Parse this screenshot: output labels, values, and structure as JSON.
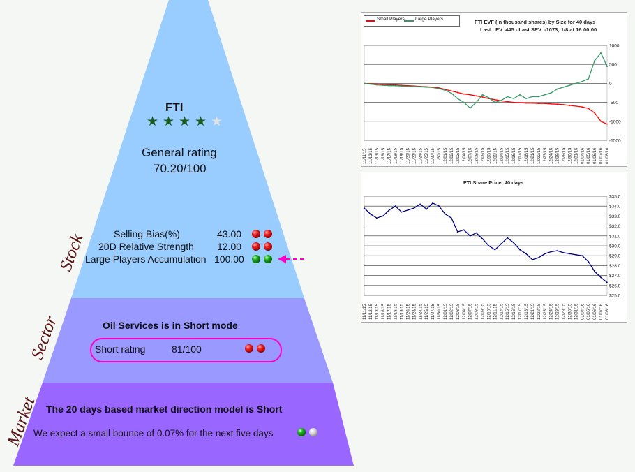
{
  "stock": {
    "ticker": "FTI",
    "stars": 4,
    "stars_max": 5,
    "rating_label": "General rating",
    "rating_value": "70.20/100",
    "side_label": "Stock",
    "metrics": [
      {
        "label": "Selling Bias(%)",
        "value": "43.00",
        "balls": [
          "red",
          "red"
        ]
      },
      {
        "label": "20D Relative Strength",
        "value": "12.00",
        "balls": [
          "red",
          "red"
        ]
      },
      {
        "label": "Large Players Accumulation",
        "value": "100.00",
        "balls": [
          "green",
          "green"
        ]
      }
    ]
  },
  "sector": {
    "side_label": "Sector",
    "headline": "Oil Services is in Short mode",
    "short_label": "Short rating",
    "short_value": "81/100",
    "balls": [
      "red",
      "red"
    ]
  },
  "market": {
    "side_label": "Market",
    "headline": "The 20 days based market direction model is Short",
    "note": "We expect a small bounce of 0.07% for the next five days",
    "balls": [
      "green",
      "white"
    ]
  },
  "colors": {
    "stock": "#99ccff",
    "sector": "#9999ff",
    "market": "#9966ff",
    "small_players": "#ff0000",
    "large_players": "#339966",
    "price": "#000080",
    "highlight": "#ff00cc"
  },
  "chart_data": [
    {
      "type": "line",
      "title": "FTI EVF (in thousand shares) by Size for 40 days",
      "subtitle": "Last LEV: 445 - Last SEV: -1073; 1/8 at 16:00:00",
      "legend_position": "top-left",
      "grid": true,
      "ylim": [
        -1500,
        1000
      ],
      "yticks": [
        1000,
        500,
        0,
        -500,
        -1000,
        -1500
      ],
      "x": [
        "11/11/15",
        "11/12/15",
        "11/13/15",
        "11/16/15",
        "11/17/15",
        "11/18/15",
        "11/19/15",
        "11/20/15",
        "11/23/15",
        "11/24/15",
        "11/25/15",
        "11/27/15",
        "11/30/15",
        "12/01/15",
        "12/02/15",
        "12/03/15",
        "12/04/15",
        "12/07/15",
        "12/08/15",
        "12/09/15",
        "12/10/15",
        "12/11/15",
        "12/14/15",
        "12/15/15",
        "12/16/15",
        "12/17/15",
        "12/18/15",
        "12/21/15",
        "12/22/15",
        "12/23/15",
        "12/24/15",
        "12/28/15",
        "12/29/15",
        "12/30/15",
        "12/31/15",
        "01/04/16",
        "01/05/16",
        "01/06/16",
        "01/07/16",
        "01/08/16"
      ],
      "series": [
        {
          "name": "Small Players",
          "color": "#ff0000",
          "values": [
            0,
            -10,
            -20,
            -30,
            -40,
            -40,
            -50,
            -60,
            -70,
            -80,
            -90,
            -100,
            -120,
            -160,
            -200,
            -240,
            -280,
            -300,
            -330,
            -360,
            -400,
            -430,
            -460,
            -480,
            -500,
            -510,
            -520,
            -520,
            -530,
            -530,
            -540,
            -550,
            -560,
            -580,
            -600,
            -620,
            -660,
            -780,
            -1000,
            -1073
          ]
        },
        {
          "name": "Large Players",
          "color": "#339966",
          "values": [
            0,
            -20,
            -40,
            -50,
            -60,
            -60,
            -70,
            -80,
            -80,
            -90,
            -100,
            -110,
            -140,
            -180,
            -260,
            -400,
            -500,
            -650,
            -500,
            -300,
            -380,
            -500,
            -450,
            -350,
            -400,
            -300,
            -400,
            -350,
            -350,
            -300,
            -250,
            -150,
            -100,
            -50,
            0,
            50,
            120,
            600,
            800,
            445
          ]
        }
      ]
    },
    {
      "type": "line",
      "title": "FTI Share Price, 40 days",
      "grid": true,
      "ylim": [
        25.0,
        35.0
      ],
      "yticks": [
        "$35.0",
        "$34.0",
        "$33.0",
        "$32.0",
        "$31.0",
        "$30.0",
        "$29.0",
        "$28.0",
        "$27.0",
        "$26.0",
        "$25.0"
      ],
      "x": [
        "11/11/15",
        "11/12/15",
        "11/13/15",
        "11/16/15",
        "11/17/15",
        "11/18/15",
        "11/19/15",
        "11/20/15",
        "11/23/15",
        "11/24/15",
        "11/25/15",
        "11/27/15",
        "11/30/15",
        "12/01/15",
        "12/02/15",
        "12/03/15",
        "12/04/15",
        "12/07/15",
        "12/08/15",
        "12/09/15",
        "12/10/15",
        "12/11/15",
        "12/14/15",
        "12/15/15",
        "12/16/15",
        "12/17/15",
        "12/18/15",
        "12/21/15",
        "12/22/15",
        "12/23/15",
        "12/24/15",
        "12/28/15",
        "12/29/15",
        "12/30/15",
        "12/31/15",
        "01/04/16",
        "01/05/16",
        "01/06/16",
        "01/07/16",
        "01/08/16"
      ],
      "series": [
        {
          "name": "",
          "color": "#000080",
          "values": [
            33.8,
            33.2,
            32.8,
            33.0,
            33.6,
            34.0,
            33.4,
            33.6,
            33.8,
            34.2,
            33.7,
            34.3,
            34.0,
            33.2,
            32.8,
            31.4,
            31.6,
            31.0,
            31.3,
            30.7,
            30.0,
            29.6,
            30.2,
            30.8,
            30.3,
            29.6,
            29.2,
            28.6,
            28.8,
            29.2,
            29.4,
            29.5,
            29.3,
            29.2,
            29.1,
            29.0,
            28.4,
            27.4,
            26.8,
            26.3
          ]
        }
      ]
    }
  ]
}
